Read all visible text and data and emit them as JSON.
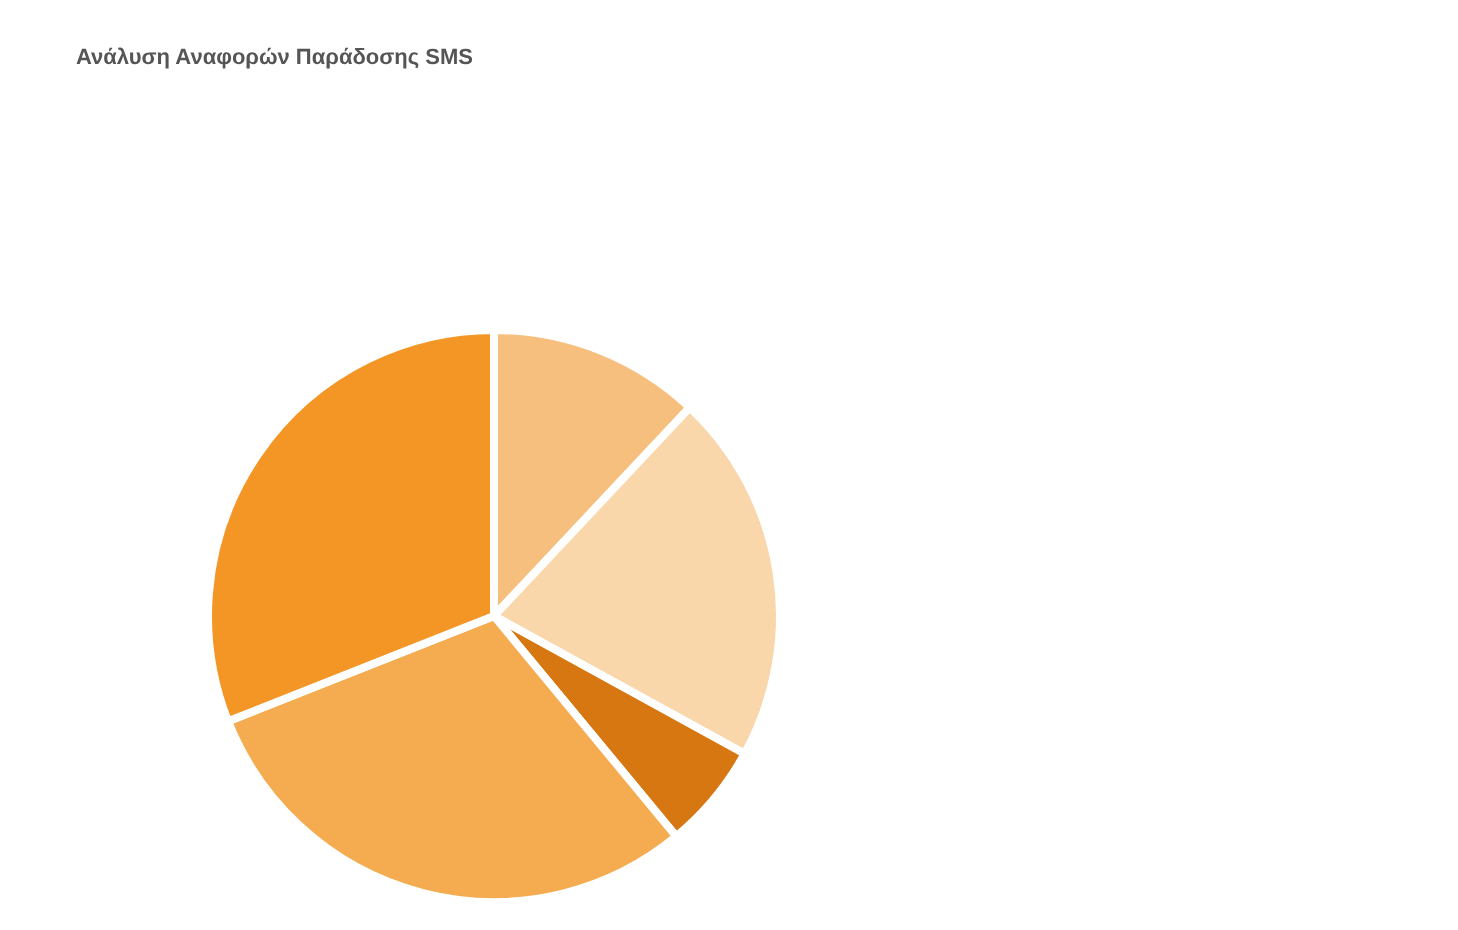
{
  "chart_data": {
    "type": "pie",
    "title": "Ανάλυση Αναφορών Παράδοσης SMS",
    "categories": [
      null,
      null,
      null,
      null,
      null
    ],
    "values": [
      12,
      21,
      6,
      30,
      31
    ],
    "colors": [
      "#f7bf7e",
      "#f9d7aa",
      "#d67711",
      "#f5ab50",
      "#f39625"
    ]
  }
}
